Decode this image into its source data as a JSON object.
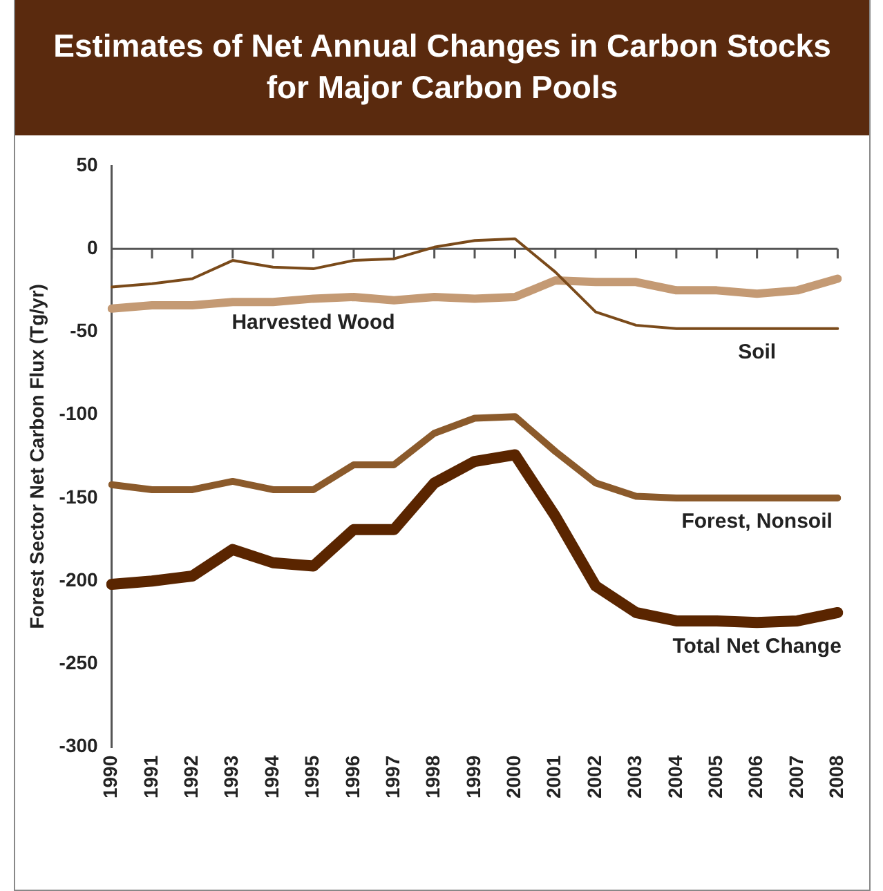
{
  "chart_data": {
    "type": "line",
    "title": "Estimates of Net Annual Changes in Carbon Stocks\nfor Major Carbon Pools",
    "ylabel": "Forest Sector Net Carbon Flux (Tg/yr)",
    "categories": [
      "1990",
      "1991",
      "1992",
      "1993",
      "1994",
      "1995",
      "1996",
      "1997",
      "1998",
      "1999",
      "2000",
      "2001",
      "2002",
      "2003",
      "2004",
      "2005",
      "2006",
      "2007",
      "2008"
    ],
    "series": [
      {
        "name": "Soil",
        "color": "#7a4a1a",
        "values": [
          -23,
          -21,
          -18,
          -7,
          -11,
          -12,
          -7,
          -6,
          1,
          5,
          6,
          -14,
          -38,
          -46,
          -48,
          -48,
          -48,
          -48,
          -48
        ]
      },
      {
        "name": "Harvested Wood",
        "color": "#c49a74",
        "values": [
          -36,
          -34,
          -34,
          -32,
          -32,
          -30,
          -29,
          -31,
          -29,
          -30,
          -29,
          -19,
          -20,
          -20,
          -25,
          -25,
          -27,
          -25,
          -18
        ]
      },
      {
        "name": "Forest, Nonsoil",
        "color": "#8b5a2b",
        "values": [
          -142,
          -145,
          -145,
          -140,
          -145,
          -145,
          -130,
          -130,
          -111,
          -102,
          -101,
          -122,
          -141,
          -149,
          -150,
          -150,
          -150,
          -150,
          -150
        ]
      },
      {
        "name": "Total Net Change",
        "color": "#5a2500",
        "values": [
          -202,
          -200,
          -197,
          -181,
          -189,
          -191,
          -169,
          -169,
          -141,
          -128,
          -124,
          -161,
          -203,
          -219,
          -224,
          -224,
          -225,
          -224,
          -219
        ]
      }
    ],
    "ylim": [
      -300,
      50
    ],
    "yticks": [
      -300,
      -250,
      -200,
      -150,
      -100,
      -50,
      0,
      50
    ],
    "grid": false,
    "legend": false,
    "marker": "none",
    "line_style": "solid",
    "ref_lines": [
      {
        "axis": "y",
        "value": 0,
        "color": "#555555"
      }
    ]
  }
}
